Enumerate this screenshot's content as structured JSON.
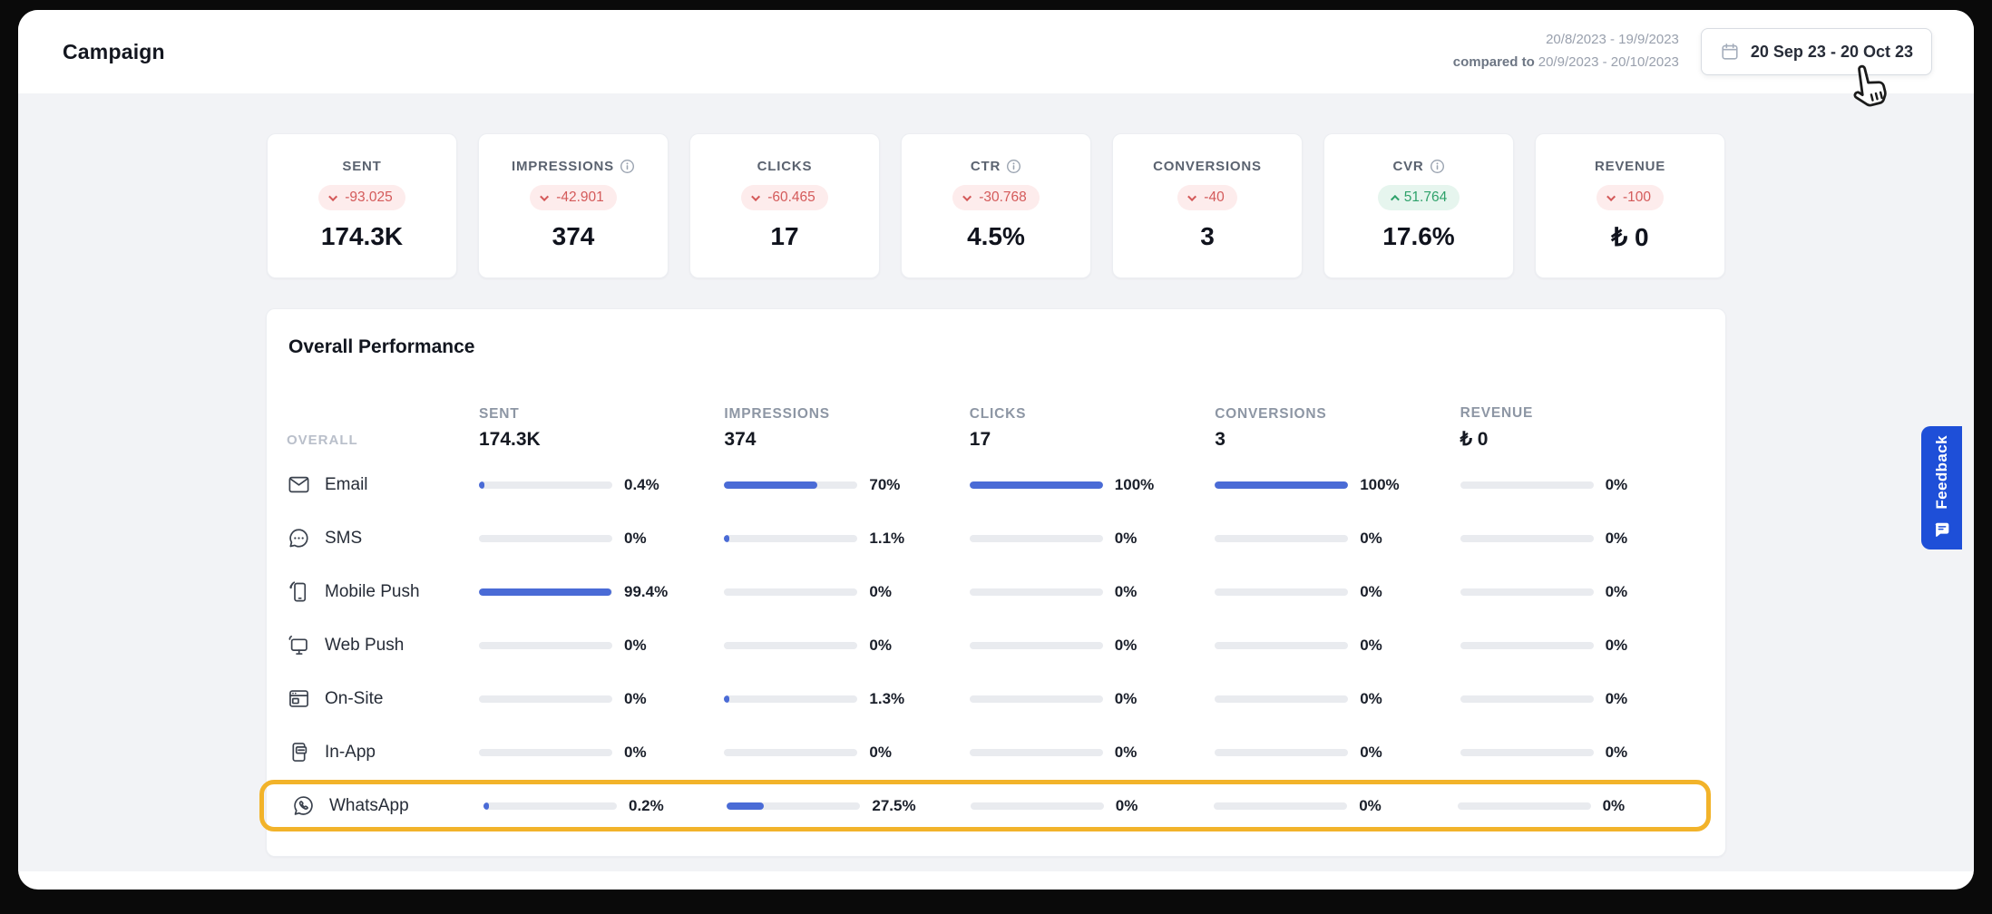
{
  "header": {
    "title": "Campaign",
    "range_current": "20/8/2023 - 19/9/2023",
    "compared_label": "compared to",
    "range_compared": "20/9/2023 - 20/10/2023",
    "date_picker_label": "20 Sep 23 - 20 Oct 23"
  },
  "kpis": [
    {
      "label": "SENT",
      "change": "-93.025",
      "direction": "down",
      "value": "174.3K"
    },
    {
      "label": "IMPRESSIONS",
      "change": "-42.901",
      "direction": "down",
      "value": "374"
    },
    {
      "label": "CLICKS",
      "change": "-60.465",
      "direction": "down",
      "value": "17"
    },
    {
      "label": "CTR",
      "change": "-30.768",
      "direction": "down",
      "value": "4.5%"
    },
    {
      "label": "CONVERSIONS",
      "change": "-40",
      "direction": "down",
      "value": "3"
    },
    {
      "label": "CVR",
      "change": "51.764",
      "direction": "up",
      "value": "17.6%"
    },
    {
      "label": "REVENUE",
      "change": "-100",
      "direction": "down",
      "value": "₺ 0"
    }
  ],
  "performance": {
    "title": "Overall Performance",
    "overall_label": "OVERALL",
    "columns": [
      {
        "label": "SENT",
        "total": "174.3K"
      },
      {
        "label": "IMPRESSIONS",
        "total": "374"
      },
      {
        "label": "CLICKS",
        "total": "17"
      },
      {
        "label": "CONVERSIONS",
        "total": "3"
      },
      {
        "label": "REVENUE",
        "total": "₺ 0"
      }
    ],
    "rows": [
      {
        "channel": "Email",
        "values": [
          {
            "pct": 0.4,
            "label": "0.4%"
          },
          {
            "pct": 70,
            "label": "70%"
          },
          {
            "pct": 100,
            "label": "100%"
          },
          {
            "pct": 100,
            "label": "100%"
          },
          {
            "pct": 0,
            "label": "0%"
          }
        ]
      },
      {
        "channel": "SMS",
        "values": [
          {
            "pct": 0,
            "label": "0%"
          },
          {
            "pct": 1.1,
            "label": "1.1%"
          },
          {
            "pct": 0,
            "label": "0%"
          },
          {
            "pct": 0,
            "label": "0%"
          },
          {
            "pct": 0,
            "label": "0%"
          }
        ]
      },
      {
        "channel": "Mobile Push",
        "values": [
          {
            "pct": 99.4,
            "label": "99.4%"
          },
          {
            "pct": 0,
            "label": "0%"
          },
          {
            "pct": 0,
            "label": "0%"
          },
          {
            "pct": 0,
            "label": "0%"
          },
          {
            "pct": 0,
            "label": "0%"
          }
        ]
      },
      {
        "channel": "Web Push",
        "values": [
          {
            "pct": 0,
            "label": "0%"
          },
          {
            "pct": 0,
            "label": "0%"
          },
          {
            "pct": 0,
            "label": "0%"
          },
          {
            "pct": 0,
            "label": "0%"
          },
          {
            "pct": 0,
            "label": "0%"
          }
        ]
      },
      {
        "channel": "On-Site",
        "values": [
          {
            "pct": 0,
            "label": "0%"
          },
          {
            "pct": 1.3,
            "label": "1.3%"
          },
          {
            "pct": 0,
            "label": "0%"
          },
          {
            "pct": 0,
            "label": "0%"
          },
          {
            "pct": 0,
            "label": "0%"
          }
        ]
      },
      {
        "channel": "In-App",
        "values": [
          {
            "pct": 0,
            "label": "0%"
          },
          {
            "pct": 0,
            "label": "0%"
          },
          {
            "pct": 0,
            "label": "0%"
          },
          {
            "pct": 0,
            "label": "0%"
          },
          {
            "pct": 0,
            "label": "0%"
          }
        ]
      },
      {
        "channel": "WhatsApp",
        "values": [
          {
            "pct": 0.2,
            "label": "0.2%"
          },
          {
            "pct": 27.5,
            "label": "27.5%"
          },
          {
            "pct": 0,
            "label": "0%"
          },
          {
            "pct": 0,
            "label": "0%"
          },
          {
            "pct": 0,
            "label": "0%"
          }
        ]
      }
    ]
  },
  "feedback": {
    "label": "Feedback"
  },
  "colors": {
    "accent_blue": "#4a6bd6",
    "highlight": "#f2b32a",
    "feedback_blue": "#1e4fd8",
    "negative": "#d45a5a",
    "positive": "#2fa26b"
  }
}
